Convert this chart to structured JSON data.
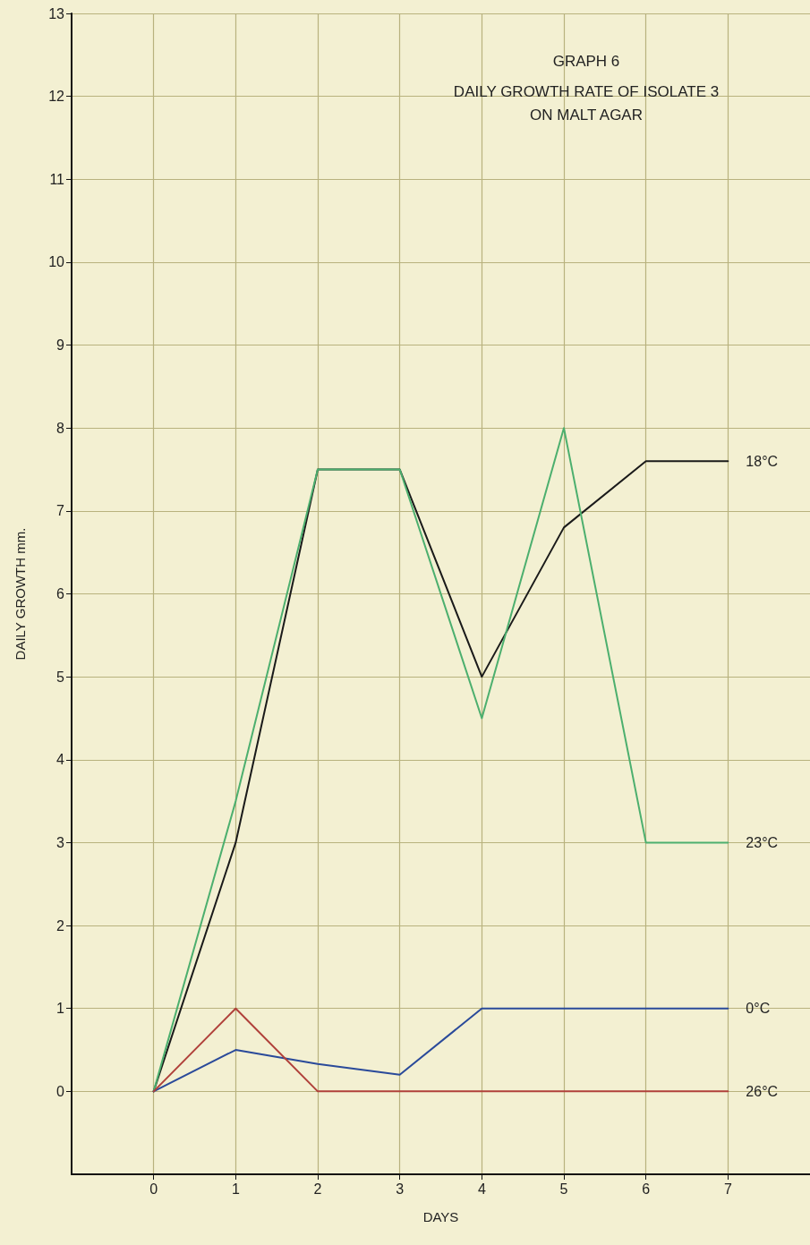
{
  "chart_data": {
    "type": "line",
    "title": "GRAPH 6",
    "subtitle": "DAILY GROWTH RATE OF ISOLATE 3\nON MALT AGAR",
    "xlabel": "DAYS",
    "ylabel": "DAILY GROWTH mm.",
    "x": [
      0,
      1,
      2,
      3,
      4,
      5,
      6,
      7
    ],
    "series": [
      {
        "name": "18°C",
        "color": "#1a1a1a",
        "values": [
          0,
          3.0,
          7.5,
          7.5,
          5.0,
          6.8,
          7.6,
          7.6
        ]
      },
      {
        "name": "23°C",
        "color": "#4caf6e",
        "values": [
          0,
          3.5,
          7.5,
          7.5,
          4.5,
          8.0,
          3.0,
          3.0
        ]
      },
      {
        "name": "0°C",
        "color": "#2a4a9a",
        "values": [
          0,
          0.5,
          0.33,
          0.2,
          1.0,
          1.0,
          1.0,
          1.0
        ]
      },
      {
        "name": "26°C",
        "color": "#b0403a",
        "values": [
          0,
          1.0,
          0,
          0,
          0,
          0,
          0,
          0
        ]
      }
    ],
    "xlim": [
      -1,
      8
    ],
    "xticks": [
      0,
      1,
      2,
      3,
      4,
      5,
      6,
      7
    ],
    "ylim": [
      -1,
      13
    ],
    "yticks": [
      0,
      1,
      2,
      3,
      4,
      5,
      6,
      7,
      8,
      9,
      10,
      11,
      12,
      13
    ],
    "grid": true,
    "legend": false,
    "marker": "none",
    "line_style": "solid"
  }
}
